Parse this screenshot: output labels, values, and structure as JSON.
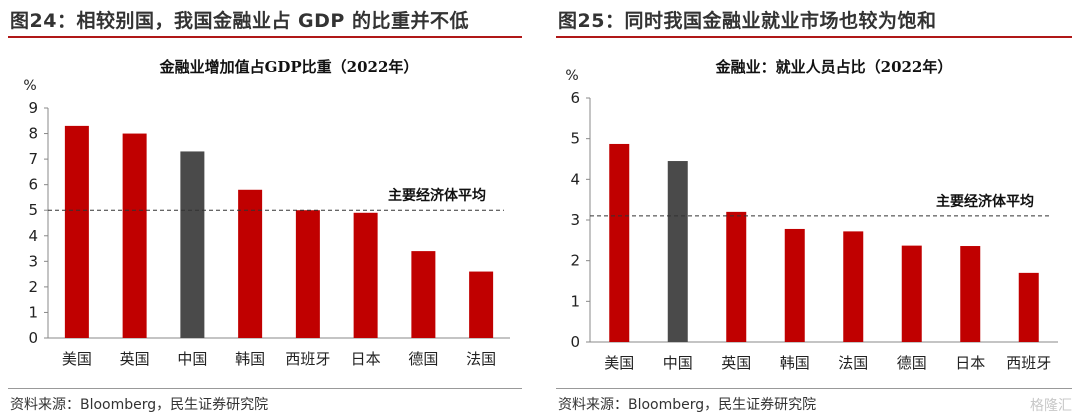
{
  "left": {
    "figure_title": "图24：相较别国，我国金融业占 GDP 的比重并不低",
    "source": "资料来源：Bloomberg，民生证券研究院"
  },
  "right": {
    "figure_title": "图25：同时我国金融业就业市场也较为饱和",
    "source": "资料来源：Bloomberg，民生证券研究院"
  },
  "watermark": "格隆汇",
  "colors": {
    "bar": "#c00000",
    "highlight": "#4a4a4a",
    "rule": "#b01818"
  },
  "chart_data": [
    {
      "type": "bar",
      "title": "金融业增加值占GDP比重（2022年）",
      "ylabel": "%",
      "xlabel": "",
      "categories": [
        "美国",
        "英国",
        "中国",
        "韩国",
        "西班牙",
        "日本",
        "德国",
        "法国"
      ],
      "values": [
        8.3,
        8.0,
        7.3,
        5.8,
        5.0,
        4.9,
        3.4,
        2.6
      ],
      "highlight_category": "中国",
      "ylim": [
        0,
        9
      ],
      "yticks": [
        0,
        1,
        2,
        3,
        4,
        5,
        6,
        7,
        8,
        9
      ],
      "reference_line": {
        "value": 5.0,
        "label": "主要经济体平均"
      },
      "grid": false
    },
    {
      "type": "bar",
      "title": "金融业：就业人员占比（2022年）",
      "ylabel": "%",
      "xlabel": "",
      "categories": [
        "美国",
        "中国",
        "英国",
        "韩国",
        "法国",
        "德国",
        "日本",
        "西班牙"
      ],
      "values": [
        4.87,
        4.45,
        3.2,
        2.78,
        2.72,
        2.37,
        2.36,
        1.7
      ],
      "highlight_category": "中国",
      "ylim": [
        0,
        6
      ],
      "yticks": [
        0,
        1,
        2,
        3,
        4,
        5,
        6
      ],
      "reference_line": {
        "value": 3.1,
        "label": "主要经济体平均"
      },
      "grid": false
    }
  ]
}
